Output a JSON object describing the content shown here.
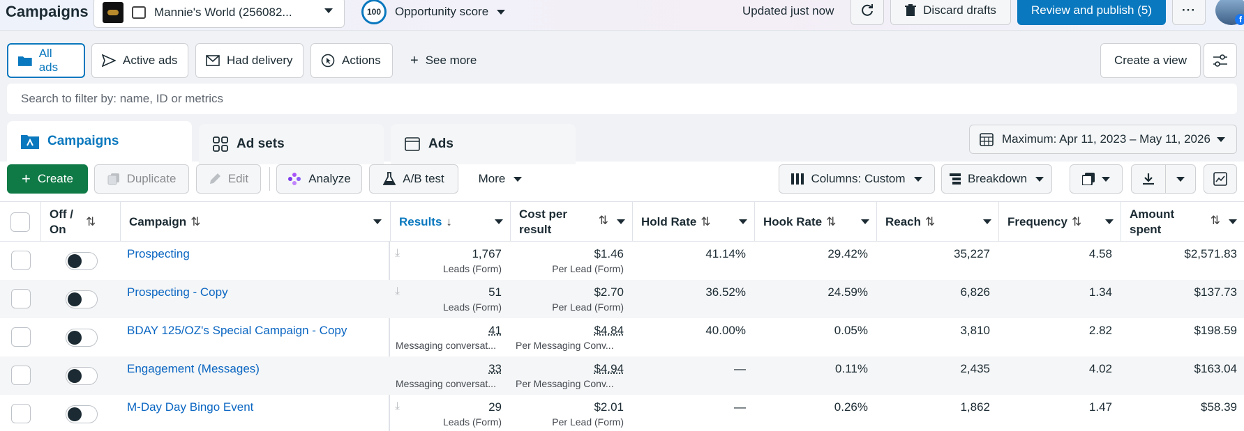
{
  "topbar": {
    "title": "Campaigns",
    "account_name": "Mannie's World (256082...",
    "score_value": "100",
    "score_label": "Opportunity score",
    "updated": "Updated just now",
    "discard_label": "Discard drafts",
    "publish_label": "Review and publish (5)",
    "more_label": "···"
  },
  "filters": {
    "all_ads": "All ads",
    "active_ads": "Active ads",
    "had_delivery": "Had delivery",
    "actions": "Actions",
    "see_more": "See more",
    "create_view": "Create a view"
  },
  "search": {
    "placeholder": "Search to filter by: name, ID or metrics"
  },
  "level_tabs": {
    "campaigns": "Campaigns",
    "ad_sets": "Ad sets",
    "ads": "Ads"
  },
  "date_range": "Maximum: Apr 11, 2023 – May 11, 2026",
  "toolbar": {
    "create": "Create",
    "duplicate": "Duplicate",
    "edit": "Edit",
    "analyze": "Analyze",
    "ab_test": "A/B test",
    "more": "More",
    "columns": "Columns: Custom",
    "breakdown": "Breakdown"
  },
  "columns": {
    "off_on_1": "Off /",
    "off_on_2": "On",
    "campaign": "Campaign",
    "results": "Results",
    "cost_1": "Cost per",
    "cost_2": "result",
    "hold_rate": "Hold Rate",
    "hook_rate": "Hook Rate",
    "reach": "Reach",
    "frequency": "Frequency",
    "amount_1": "Amount",
    "amount_2": "spent"
  },
  "rows": [
    {
      "name": "Prospecting",
      "results": "1,767",
      "results_sub": "Leads (Form)",
      "cost": "$1.46",
      "cost_sub": "Per Lead (Form)",
      "hold": "41.14%",
      "hook": "29.42%",
      "reach": "35,227",
      "freq": "4.58",
      "spent": "$2,571.83"
    },
    {
      "name": "Prospecting - Copy",
      "results": "51",
      "results_sub": "Leads (Form)",
      "cost": "$2.70",
      "cost_sub": "Per Lead (Form)",
      "hold": "36.52%",
      "hook": "24.59%",
      "reach": "6,826",
      "freq": "1.34",
      "spent": "$137.73"
    },
    {
      "name": "BDAY 125/OZ's Special Campaign - Copy",
      "results": "41",
      "results_sub": "Messaging conversat...",
      "cost": "$4.84",
      "cost_sub": "Per Messaging Conv...",
      "hold": "40.00%",
      "hook": "0.05%",
      "reach": "3,810",
      "freq": "2.82",
      "spent": "$198.59"
    },
    {
      "name": "Engagement (Messages)",
      "results": "33",
      "results_sub": "Messaging conversat...",
      "cost": "$4.94",
      "cost_sub": "Per Messaging Conv...",
      "hold": "—",
      "hook": "0.11%",
      "reach": "2,435",
      "freq": "4.02",
      "spent": "$163.04"
    },
    {
      "name": "M-Day Day Bingo Event",
      "results": "29",
      "results_sub": "Leads (Form)",
      "cost": "$2.01",
      "cost_sub": "Per Lead (Form)",
      "hold": "—",
      "hook": "0.26%",
      "reach": "1,862",
      "freq": "1.47",
      "spent": "$58.39"
    }
  ]
}
